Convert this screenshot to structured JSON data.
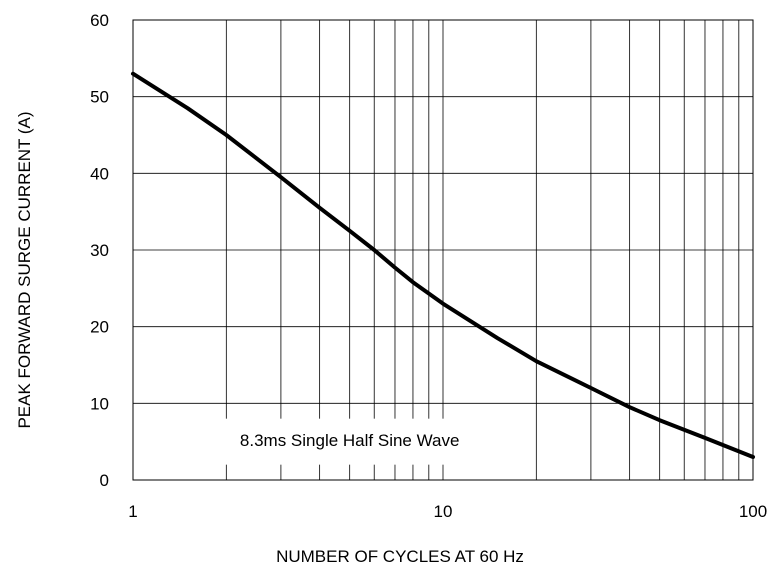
{
  "chart_data": {
    "type": "line",
    "title": "",
    "xlabel": "NUMBER OF CYCLES AT 60 Hz",
    "ylabel": "PEAK FORWARD SURGE CURRENT (A)",
    "xscale": "log",
    "xlim": [
      1,
      100
    ],
    "ylim": [
      0,
      60
    ],
    "x_ticks": [
      1,
      10,
      100
    ],
    "x_tick_labels": [
      "1",
      "10",
      "100"
    ],
    "y_ticks": [
      0,
      10,
      20,
      30,
      40,
      50,
      60
    ],
    "y_tick_labels": [
      "0",
      "10",
      "20",
      "30",
      "40",
      "50",
      "60"
    ],
    "grid": true,
    "legend": "none",
    "annotations": [
      {
        "text": "8.3ms Single Half Sine Wave",
        "x": 5,
        "y": 5
      }
    ],
    "series": [
      {
        "color": "#000000",
        "x": [
          1,
          1.5,
          2,
          3,
          4,
          5,
          6,
          7,
          8,
          10,
          15,
          20,
          30,
          40,
          50,
          70,
          100
        ],
        "y": [
          53,
          48.5,
          45,
          39.5,
          35.5,
          32.5,
          30,
          27.7,
          25.8,
          23,
          18.5,
          15.5,
          12,
          9.5,
          7.8,
          5.5,
          3
        ]
      }
    ]
  }
}
